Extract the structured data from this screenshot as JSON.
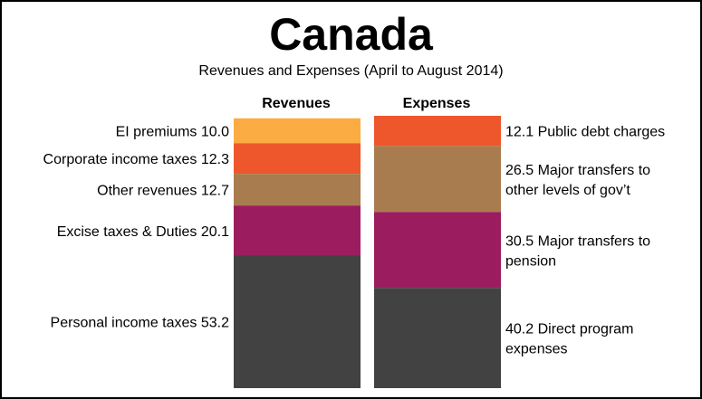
{
  "title": "Canada",
  "subtitle": "Revenues and Expenses (April to August 2014)",
  "chart_data": {
    "type": "bar",
    "stacked": true,
    "categories": [
      "Revenues",
      "Expenses"
    ],
    "series": [
      {
        "name": "Revenues",
        "segments": [
          {
            "label": "EI premiums 10.0",
            "value": 10.0,
            "color": "#FBAC43"
          },
          {
            "label": "Corporate income taxes 12.3",
            "value": 12.3,
            "color": "#EE572B"
          },
          {
            "label": "Other revenues 12.7",
            "value": 12.7,
            "color": "#A87C4F"
          },
          {
            "label": "Excise taxes & Duties 20.1",
            "value": 20.1,
            "color": "#9C1D5F"
          },
          {
            "label": "Personal income taxes 53.2",
            "value": 53.2,
            "color": "#424242"
          }
        ]
      },
      {
        "name": "Expenses",
        "segments": [
          {
            "label": [
              "12.1 Public debt charges"
            ],
            "value": 12.1,
            "color": "#EE572B"
          },
          {
            "label": [
              "26.5 Major transfers to",
              "other levels of gov’t"
            ],
            "value": 26.5,
            "color": "#A87C4F"
          },
          {
            "label": [
              "30.5 Major transfers to",
              "pension"
            ],
            "value": 30.5,
            "color": "#9C1D5F"
          },
          {
            "label": [
              "40.2 Direct program",
              "expenses"
            ],
            "value": 40.2,
            "color": "#424242"
          }
        ]
      }
    ]
  }
}
